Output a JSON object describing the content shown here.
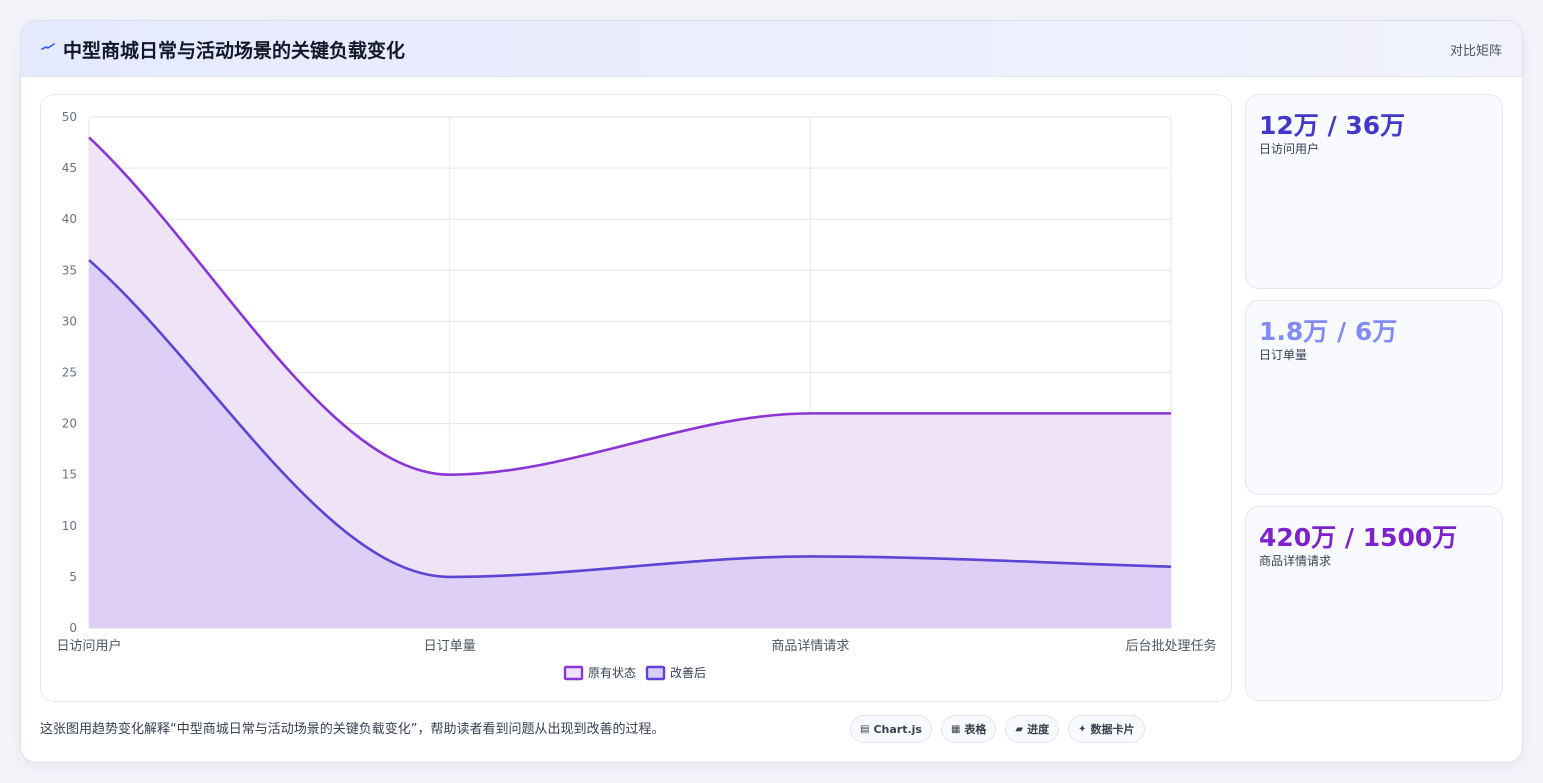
{
  "header": {
    "title": "中型商城日常与活动场景的关键负载变化",
    "tag": "对比矩阵"
  },
  "colors": {
    "original": "#8b35d6",
    "improved": "#5b45d4",
    "original_fill": "#eee1f8",
    "improved_fill": "#dccef6"
  },
  "chart_data": {
    "type": "area",
    "categories": [
      "日访问用户",
      "日订单量",
      "商品详情请求",
      "后台批处理任务"
    ],
    "series": [
      {
        "name": "原有状态",
        "values": [
          48,
          15,
          21,
          21
        ]
      },
      {
        "name": "改善后",
        "values": [
          36,
          5,
          7,
          6
        ]
      }
    ],
    "ylim": [
      0,
      50
    ],
    "yticks": [
      0,
      5,
      10,
      15,
      20,
      25,
      30,
      35,
      40,
      45,
      50
    ],
    "xlabel": "",
    "ylabel": "",
    "legend": "bottom-center",
    "grid": true
  },
  "stats": [
    {
      "value": "12万 / 36万",
      "label": "日访问用户",
      "color": "#4338ca"
    },
    {
      "value": "1.8万 / 6万",
      "label": "日订单量",
      "color": "#818cf8"
    },
    {
      "value": "420万 / 1500万",
      "label": "商品详情请求",
      "color": "#7e22ce"
    }
  ],
  "footer": {
    "text": "这张图用趋势变化解释“中型商城日常与活动场景的关键负载变化”，帮助读者看到问题从出现到改善的过程。",
    "chips": [
      {
        "icon": "chart-icon",
        "glyph": "▤",
        "label": "Chart.js"
      },
      {
        "icon": "table-icon",
        "glyph": "▦",
        "label": "表格"
      },
      {
        "icon": "progress-icon",
        "glyph": "▰",
        "label": "进度"
      },
      {
        "icon": "sparkle-icon",
        "glyph": "✦",
        "label": "数据卡片"
      }
    ]
  }
}
